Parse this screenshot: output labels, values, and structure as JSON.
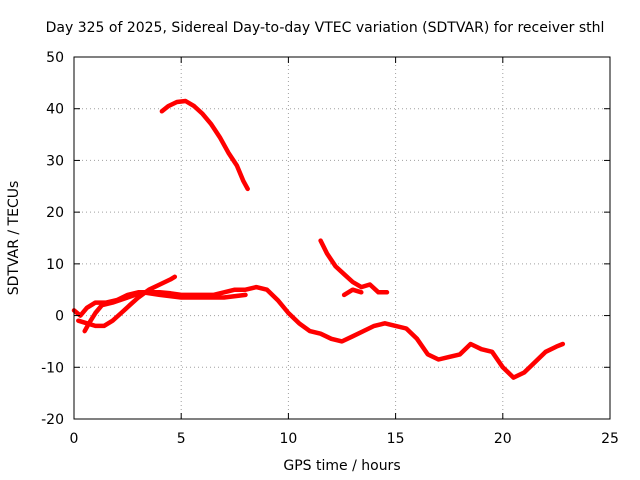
{
  "chart_data": {
    "type": "line",
    "title": "Day 325 of 2025, Sidereal Day-to-day VTEC variation (SDTVAR) for receiver sthl",
    "xlabel": "GPS time / hours",
    "ylabel": "SDTVAR / TECUs",
    "xlim": [
      0,
      25
    ],
    "ylim": [
      -20,
      50
    ],
    "x_ticks": [
      0,
      5,
      10,
      15,
      20,
      25
    ],
    "y_ticks": [
      -20,
      -10,
      0,
      10,
      20,
      30,
      40,
      50
    ],
    "x_tick_labels": [
      "0",
      "5",
      "10",
      "15",
      "20",
      "25"
    ],
    "y_tick_labels": [
      "-20",
      "-10",
      "0",
      "10",
      "20",
      "30",
      "40",
      "50"
    ],
    "grid": true,
    "series_color": "#ff0000",
    "series": [
      {
        "name": "main-trace",
        "points": [
          [
            0.0,
            1.0
          ],
          [
            0.3,
            0.0
          ],
          [
            0.6,
            1.5
          ],
          [
            1.0,
            2.5
          ],
          [
            1.5,
            2.5
          ],
          [
            2.0,
            3.0
          ],
          [
            2.5,
            4.0
          ],
          [
            3.0,
            4.5
          ],
          [
            3.5,
            4.5
          ],
          [
            4.0,
            4.5
          ],
          [
            4.5,
            4.3
          ],
          [
            5.0,
            4.0
          ],
          [
            5.5,
            4.0
          ],
          [
            6.0,
            4.0
          ],
          [
            6.5,
            4.0
          ],
          [
            7.0,
            4.5
          ],
          [
            7.5,
            5.0
          ],
          [
            8.0,
            5.0
          ],
          [
            8.5,
            5.5
          ],
          [
            9.0,
            5.0
          ],
          [
            9.5,
            3.0
          ],
          [
            10.0,
            0.5
          ],
          [
            10.5,
            -1.5
          ],
          [
            11.0,
            -3.0
          ],
          [
            11.5,
            -3.5
          ],
          [
            12.0,
            -4.5
          ],
          [
            12.5,
            -5.0
          ],
          [
            13.0,
            -4.0
          ],
          [
            13.5,
            -3.0
          ],
          [
            14.0,
            -2.0
          ],
          [
            14.5,
            -1.5
          ],
          [
            15.0,
            -2.0
          ],
          [
            15.5,
            -2.5
          ],
          [
            16.0,
            -4.5
          ],
          [
            16.5,
            -7.5
          ],
          [
            17.0,
            -8.5
          ],
          [
            17.5,
            -8.0
          ],
          [
            18.0,
            -7.5
          ],
          [
            18.5,
            -5.5
          ],
          [
            19.0,
            -6.5
          ],
          [
            19.5,
            -7.0
          ],
          [
            20.0,
            -10.0
          ],
          [
            20.5,
            -12.0
          ],
          [
            21.0,
            -11.0
          ],
          [
            21.5,
            -9.0
          ],
          [
            22.0,
            -7.0
          ],
          [
            22.5,
            -6.0
          ],
          [
            22.8,
            -5.5
          ]
        ]
      },
      {
        "name": "upper-branch-early",
        "points": [
          [
            0.2,
            -1.0
          ],
          [
            0.6,
            -1.5
          ],
          [
            1.0,
            -2.0
          ],
          [
            1.4,
            -2.0
          ],
          [
            1.8,
            -1.0
          ],
          [
            2.2,
            0.5
          ],
          [
            2.6,
            2.0
          ],
          [
            3.0,
            3.5
          ],
          [
            3.5,
            5.0
          ],
          [
            4.0,
            6.0
          ],
          [
            4.5,
            7.0
          ],
          [
            4.7,
            7.5
          ]
        ]
      },
      {
        "name": "low-start-branch",
        "points": [
          [
            0.5,
            -3.0
          ],
          [
            0.7,
            -1.5
          ],
          [
            1.0,
            0.5
          ],
          [
            1.3,
            2.0
          ],
          [
            1.8,
            2.5
          ],
          [
            2.5,
            3.5
          ],
          [
            3.2,
            4.5
          ],
          [
            4.0,
            4.0
          ],
          [
            5.0,
            3.5
          ],
          [
            6.0,
            3.5
          ],
          [
            7.0,
            3.5
          ],
          [
            8.0,
            4.0
          ]
        ]
      },
      {
        "name": "high-arc",
        "points": [
          [
            4.1,
            39.5
          ],
          [
            4.4,
            40.5
          ],
          [
            4.8,
            41.3
          ],
          [
            5.2,
            41.5
          ],
          [
            5.6,
            40.5
          ],
          [
            6.0,
            39.0
          ],
          [
            6.4,
            37.0
          ],
          [
            6.8,
            34.5
          ],
          [
            7.2,
            31.5
          ],
          [
            7.6,
            29.0
          ],
          [
            7.9,
            26.0
          ],
          [
            8.1,
            24.5
          ]
        ]
      },
      {
        "name": "mid-segment",
        "points": [
          [
            11.5,
            14.5
          ],
          [
            11.8,
            12.0
          ],
          [
            12.2,
            9.5
          ],
          [
            12.6,
            8.0
          ],
          [
            13.0,
            6.5
          ],
          [
            13.4,
            5.5
          ],
          [
            13.8,
            6.0
          ],
          [
            14.2,
            4.5
          ],
          [
            14.6,
            4.5
          ]
        ]
      },
      {
        "name": "mid-segment-lower",
        "points": [
          [
            12.6,
            4.0
          ],
          [
            13.0,
            5.0
          ],
          [
            13.4,
            4.5
          ]
        ]
      }
    ]
  }
}
